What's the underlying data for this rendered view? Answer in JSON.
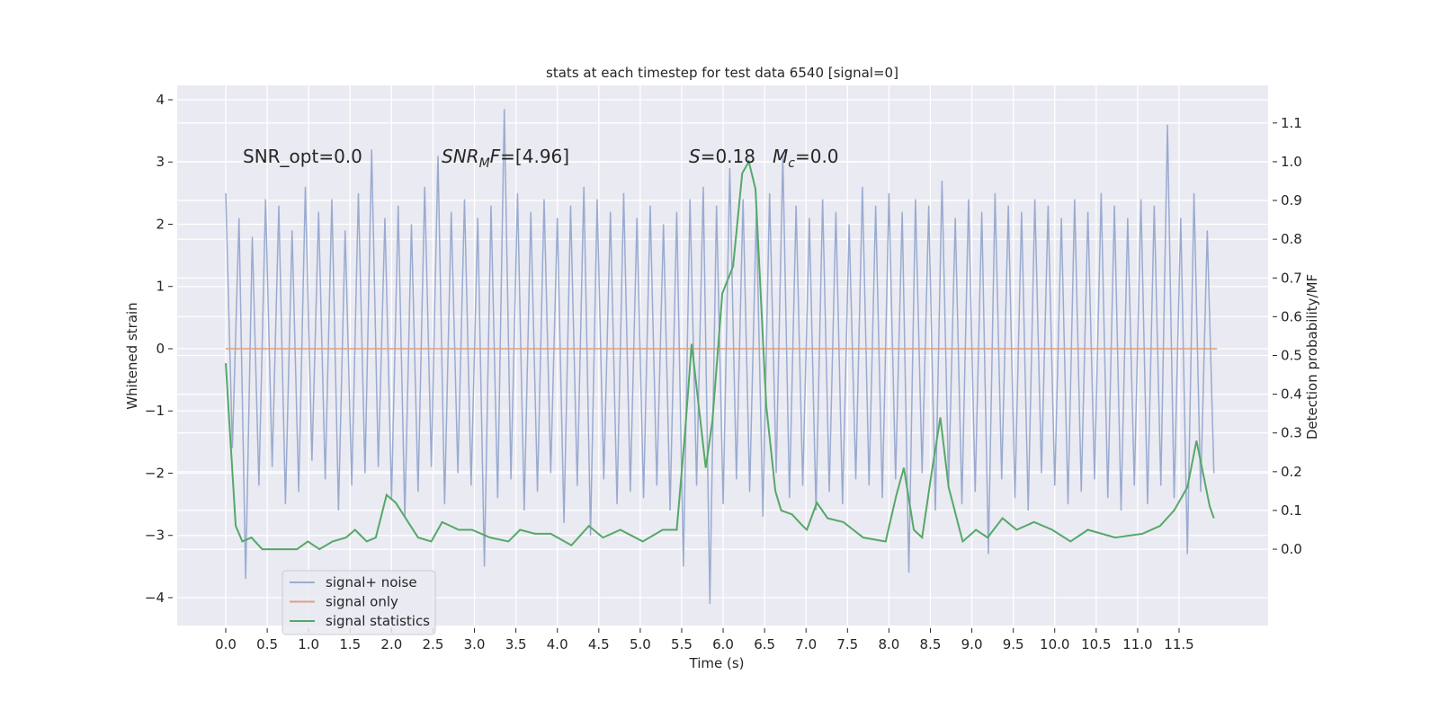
{
  "chart_data": {
    "type": "line",
    "title": "stats at each timestep for test data 6540 [signal=0]",
    "xlabel": "Time (s)",
    "ylabel": "Whitened strain",
    "y2label": "Detection probability/MF",
    "xlim": [
      -0.586,
      12.574
    ],
    "ylim": [
      -4.448,
      4.231
    ],
    "y2lim": [
      -0.197,
      1.197
    ],
    "xticks": [
      {
        "value": 0,
        "label": "0.0"
      },
      {
        "value": 0.5,
        "label": "0.5"
      },
      {
        "value": 1,
        "label": "1.0"
      },
      {
        "value": 1.5,
        "label": "1.5"
      },
      {
        "value": 2,
        "label": "2.0"
      },
      {
        "value": 2.5,
        "label": "2.5"
      },
      {
        "value": 3,
        "label": "3.0"
      },
      {
        "value": 3.5,
        "label": "3.5"
      },
      {
        "value": 4,
        "label": "4.0"
      },
      {
        "value": 4.5,
        "label": "4.5"
      },
      {
        "value": 5,
        "label": "5.0"
      },
      {
        "value": 5.5,
        "label": "5.5"
      },
      {
        "value": 6,
        "label": "6.0"
      },
      {
        "value": 6.5,
        "label": "6.5"
      },
      {
        "value": 7,
        "label": "7.0"
      },
      {
        "value": 7.5,
        "label": "7.5"
      },
      {
        "value": 8,
        "label": "8.0"
      },
      {
        "value": 8.5,
        "label": "8.5"
      },
      {
        "value": 9,
        "label": "9.0"
      },
      {
        "value": 9.5,
        "label": "9.5"
      },
      {
        "value": 10,
        "label": "10.0"
      },
      {
        "value": 10.5,
        "label": "10.5"
      },
      {
        "value": 11,
        "label": "11.0"
      },
      {
        "value": 11.5,
        "label": "11.5"
      }
    ],
    "yticks": [
      {
        "value": -4,
        "label": "−4"
      },
      {
        "value": -3,
        "label": "−3"
      },
      {
        "value": -2,
        "label": "−2"
      },
      {
        "value": -1,
        "label": "−1"
      },
      0,
      1,
      2,
      3,
      4
    ],
    "y2ticks": [
      {
        "value": 0,
        "label": "0.0"
      },
      {
        "value": 0.1,
        "label": "0.1"
      },
      {
        "value": 0.2,
        "label": "0.2"
      },
      {
        "value": 0.3,
        "label": "0.3"
      },
      {
        "value": 0.4,
        "label": "0.4"
      },
      {
        "value": 0.5,
        "label": "0.5"
      },
      {
        "value": 0.6,
        "label": "0.6"
      },
      {
        "value": 0.7,
        "label": "0.7"
      },
      {
        "value": 0.8,
        "label": "0.8"
      },
      {
        "value": 0.9,
        "label": "0.9"
      },
      {
        "value": 1,
        "label": "1.0"
      },
      {
        "value": 1.1,
        "label": "1.1"
      }
    ],
    "grid": true,
    "legend": "lower left",
    "annotations": [
      {
        "segments": [
          {
            "text": "SNR_opt=0.0"
          }
        ]
      },
      {
        "segments": [
          {
            "text": "SNR",
            "style": "italic"
          },
          {
            "text": "M",
            "style": "italic-sub"
          },
          {
            "text": "F",
            "style": "italic"
          },
          {
            "text": "=[4.96]"
          }
        ]
      },
      {
        "segments": [
          {
            "text": "S",
            "style": "italic"
          },
          {
            "text": "=0.18"
          }
        ]
      },
      {
        "segments": [
          {
            "text": "M",
            "style": "italic"
          },
          {
            "text": "c",
            "style": "italic-sub"
          },
          {
            "text": "=0.0"
          }
        ]
      }
    ],
    "series": [
      {
        "name": "signal+ noise",
        "color": "#9aabd0",
        "axis": "y",
        "x": [
          0,
          0.08,
          0.16,
          0.24,
          0.32,
          0.4,
          0.48,
          0.56,
          0.64,
          0.72,
          0.8,
          0.88,
          0.96,
          1.04,
          1.12,
          1.2,
          1.28,
          1.36,
          1.44,
          1.52,
          1.6,
          1.68,
          1.76,
          1.84,
          1.92,
          2,
          2.08,
          2.16,
          2.24,
          2.32,
          2.4,
          2.48,
          2.56,
          2.64,
          2.72,
          2.8,
          2.88,
          2.96,
          3.04,
          3.12,
          3.2,
          3.28,
          3.36,
          3.44,
          3.52,
          3.6,
          3.68,
          3.76,
          3.84,
          3.92,
          4,
          4.08,
          4.16,
          4.24,
          4.32,
          4.4,
          4.48,
          4.56,
          4.64,
          4.72,
          4.8,
          4.88,
          4.96,
          5.04,
          5.12,
          5.2,
          5.28,
          5.36,
          5.44,
          5.52,
          5.6,
          5.68,
          5.76,
          5.84,
          5.92,
          6,
          6.08,
          6.16,
          6.24,
          6.32,
          6.4,
          6.48,
          6.56,
          6.64,
          6.72,
          6.8,
          6.88,
          6.96,
          7.04,
          7.12,
          7.2,
          7.28,
          7.36,
          7.44,
          7.52,
          7.6,
          7.68,
          7.76,
          7.84,
          7.92,
          8,
          8.08,
          8.16,
          8.24,
          8.32,
          8.4,
          8.48,
          8.56,
          8.64,
          8.72,
          8.8,
          8.88,
          8.96,
          9.04,
          9.12,
          9.2,
          9.28,
          9.36,
          9.44,
          9.52,
          9.6,
          9.68,
          9.76,
          9.84,
          9.92,
          10,
          10.08,
          10.16,
          10.24,
          10.32,
          10.4,
          10.48,
          10.56,
          10.64,
          10.72,
          10.8,
          10.88,
          10.96,
          11.04,
          11.12,
          11.2,
          11.28,
          11.36,
          11.44,
          11.52,
          11.6,
          11.68,
          11.76,
          11.84,
          11.92
        ],
        "values": [
          2.5,
          -1.6,
          2.1,
          -3.7,
          1.8,
          -2.2,
          2.4,
          -1.9,
          2.3,
          -2.5,
          1.9,
          -2.3,
          2.6,
          -1.8,
          2.2,
          -2.1,
          2.4,
          -2.6,
          1.9,
          -2.2,
          2.5,
          -2.0,
          3.2,
          -1.9,
          2.1,
          -2.4,
          2.3,
          -2.7,
          2.0,
          -2.3,
          2.6,
          -1.9,
          3.1,
          -2.5,
          2.2,
          -2.0,
          2.4,
          -2.2,
          2.1,
          -3.5,
          2.3,
          -2.4,
          3.85,
          -2.1,
          2.5,
          -2.6,
          2.2,
          -2.3,
          2.4,
          -2.0,
          2.1,
          -2.8,
          2.3,
          -2.2,
          2.6,
          -3.0,
          2.4,
          -2.1,
          2.2,
          -2.5,
          2.5,
          -2.3,
          2.1,
          -2.4,
          2.3,
          -2.2,
          2.0,
          -2.6,
          2.2,
          -3.5,
          2.4,
          -2.2,
          2.6,
          -4.1,
          2.3,
          -2.5,
          2.9,
          -2.1,
          2.4,
          -2.3,
          2.2,
          -2.7,
          2.5,
          -2.0,
          3.1,
          -2.4,
          2.3,
          -2.2,
          2.1,
          -2.6,
          2.4,
          -2.3,
          2.2,
          -2.5,
          2.0,
          -2.1,
          2.6,
          -2.2,
          2.3,
          -2.4,
          2.5,
          -2.1,
          2.2,
          -3.6,
          2.4,
          -2.0,
          2.3,
          -2.6,
          2.7,
          -2.2,
          2.1,
          -2.5,
          2.4,
          -2.3,
          2.2,
          -3.3,
          2.5,
          -2.1,
          2.3,
          -2.4,
          2.2,
          -2.6,
          2.4,
          -2.0,
          2.3,
          -2.2,
          2.1,
          -2.5,
          2.4,
          -2.3,
          2.2,
          -2.1,
          2.5,
          -2.4,
          2.3,
          -2.6,
          2.1,
          -2.2,
          2.4,
          -2.5,
          2.3,
          -2.2,
          3.6,
          -2.4,
          2.1,
          -3.3,
          2.5,
          -2.3,
          1.9,
          -2.0
        ]
      },
      {
        "name": "signal only",
        "color": "#dd9f82",
        "axis": "y",
        "x": [
          0,
          11.96
        ],
        "values": [
          0,
          0
        ]
      },
      {
        "name": "signal statistics",
        "color": "#55a868",
        "axis": "y2",
        "x": [
          0,
          0.12,
          0.2,
          0.31,
          0.44,
          0.64,
          0.86,
          0.99,
          1.13,
          1.29,
          1.45,
          1.56,
          1.7,
          1.81,
          1.94,
          2.05,
          2.17,
          2.32,
          2.48,
          2.61,
          2.81,
          2.97,
          3.19,
          3.41,
          3.55,
          3.73,
          3.92,
          4.17,
          4.38,
          4.55,
          4.76,
          5.03,
          5.27,
          5.44,
          5.54,
          5.62,
          5.79,
          5.87,
          5.99,
          6.12,
          6.23,
          6.31,
          6.39,
          6.52,
          6.63,
          6.7,
          6.83,
          6.96,
          7.01,
          7.13,
          7.26,
          7.45,
          7.69,
          7.96,
          8.09,
          8.18,
          8.3,
          8.4,
          8.51,
          8.62,
          8.72,
          8.89,
          9.05,
          9.19,
          9.37,
          9.54,
          9.75,
          9.97,
          10.19,
          10.4,
          10.73,
          11.06,
          11.27,
          11.44,
          11.6,
          11.71,
          11.87,
          11.92
        ],
        "values": [
          0.48,
          0.06,
          0.02,
          0.03,
          0.0,
          0.0,
          0.0,
          0.02,
          0.0,
          0.02,
          0.03,
          0.05,
          0.02,
          0.03,
          0.14,
          0.12,
          0.08,
          0.03,
          0.02,
          0.07,
          0.05,
          0.05,
          0.03,
          0.02,
          0.05,
          0.04,
          0.04,
          0.01,
          0.06,
          0.03,
          0.05,
          0.02,
          0.05,
          0.05,
          0.3,
          0.53,
          0.21,
          0.33,
          0.66,
          0.73,
          0.97,
          1.0,
          0.93,
          0.37,
          0.15,
          0.1,
          0.09,
          0.06,
          0.05,
          0.12,
          0.08,
          0.07,
          0.03,
          0.02,
          0.14,
          0.21,
          0.05,
          0.03,
          0.19,
          0.34,
          0.16,
          0.02,
          0.05,
          0.03,
          0.08,
          0.05,
          0.07,
          0.05,
          0.02,
          0.05,
          0.03,
          0.04,
          0.06,
          0.1,
          0.16,
          0.28,
          0.11,
          0.08
        ]
      }
    ]
  }
}
